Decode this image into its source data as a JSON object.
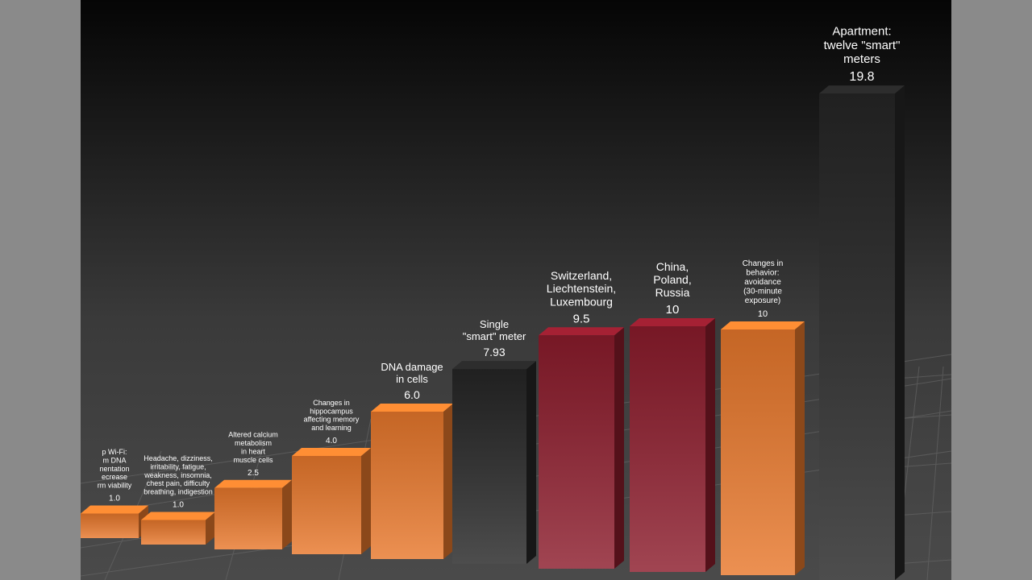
{
  "chart_data": {
    "type": "bar3d",
    "categories": [
      [
        "p Wi-Fi:",
        "m DNA",
        "nentation",
        "ecrease",
        "rm viability"
      ],
      [
        "Headache, dizziness,",
        "irritability, fatigue,",
        "weakness, insomnia,",
        "chest pain, difficulty",
        "breathing, indigestion"
      ],
      [
        "Altered calcium",
        "metabolism",
        "in heart",
        "muscle cells"
      ],
      [
        "Changes in",
        "hippocampus",
        "affecting memory",
        "and learning"
      ],
      [
        "DNA damage",
        "in cells"
      ],
      [
        "Single",
        "\"smart\" meter"
      ],
      [
        "Switzerland,",
        "Liechtenstein,",
        "Luxembourg"
      ],
      [
        "China,",
        "Poland,",
        "Russia"
      ],
      [
        "Changes in",
        "behavior:",
        "avoidance",
        "(30-minute",
        "exposure)"
      ],
      [
        "Apartment:",
        "twelve \"smart\"",
        "meters"
      ]
    ],
    "values": [
      1.0,
      1.0,
      2.5,
      4.0,
      6.0,
      7.93,
      9.5,
      10,
      10,
      19.8
    ],
    "value_labels": [
      "1.0",
      "1.0",
      "2.5",
      "4.0",
      "6.0",
      "7.93",
      "9.5",
      "10",
      "10",
      "19.8"
    ],
    "colors": [
      "#e8782c",
      "#e8782c",
      "#e8782c",
      "#e8782c",
      "#e8782c",
      "#262626",
      "#8c1c2c",
      "#8c1c2c",
      "#e8782c",
      "#262626"
    ]
  }
}
